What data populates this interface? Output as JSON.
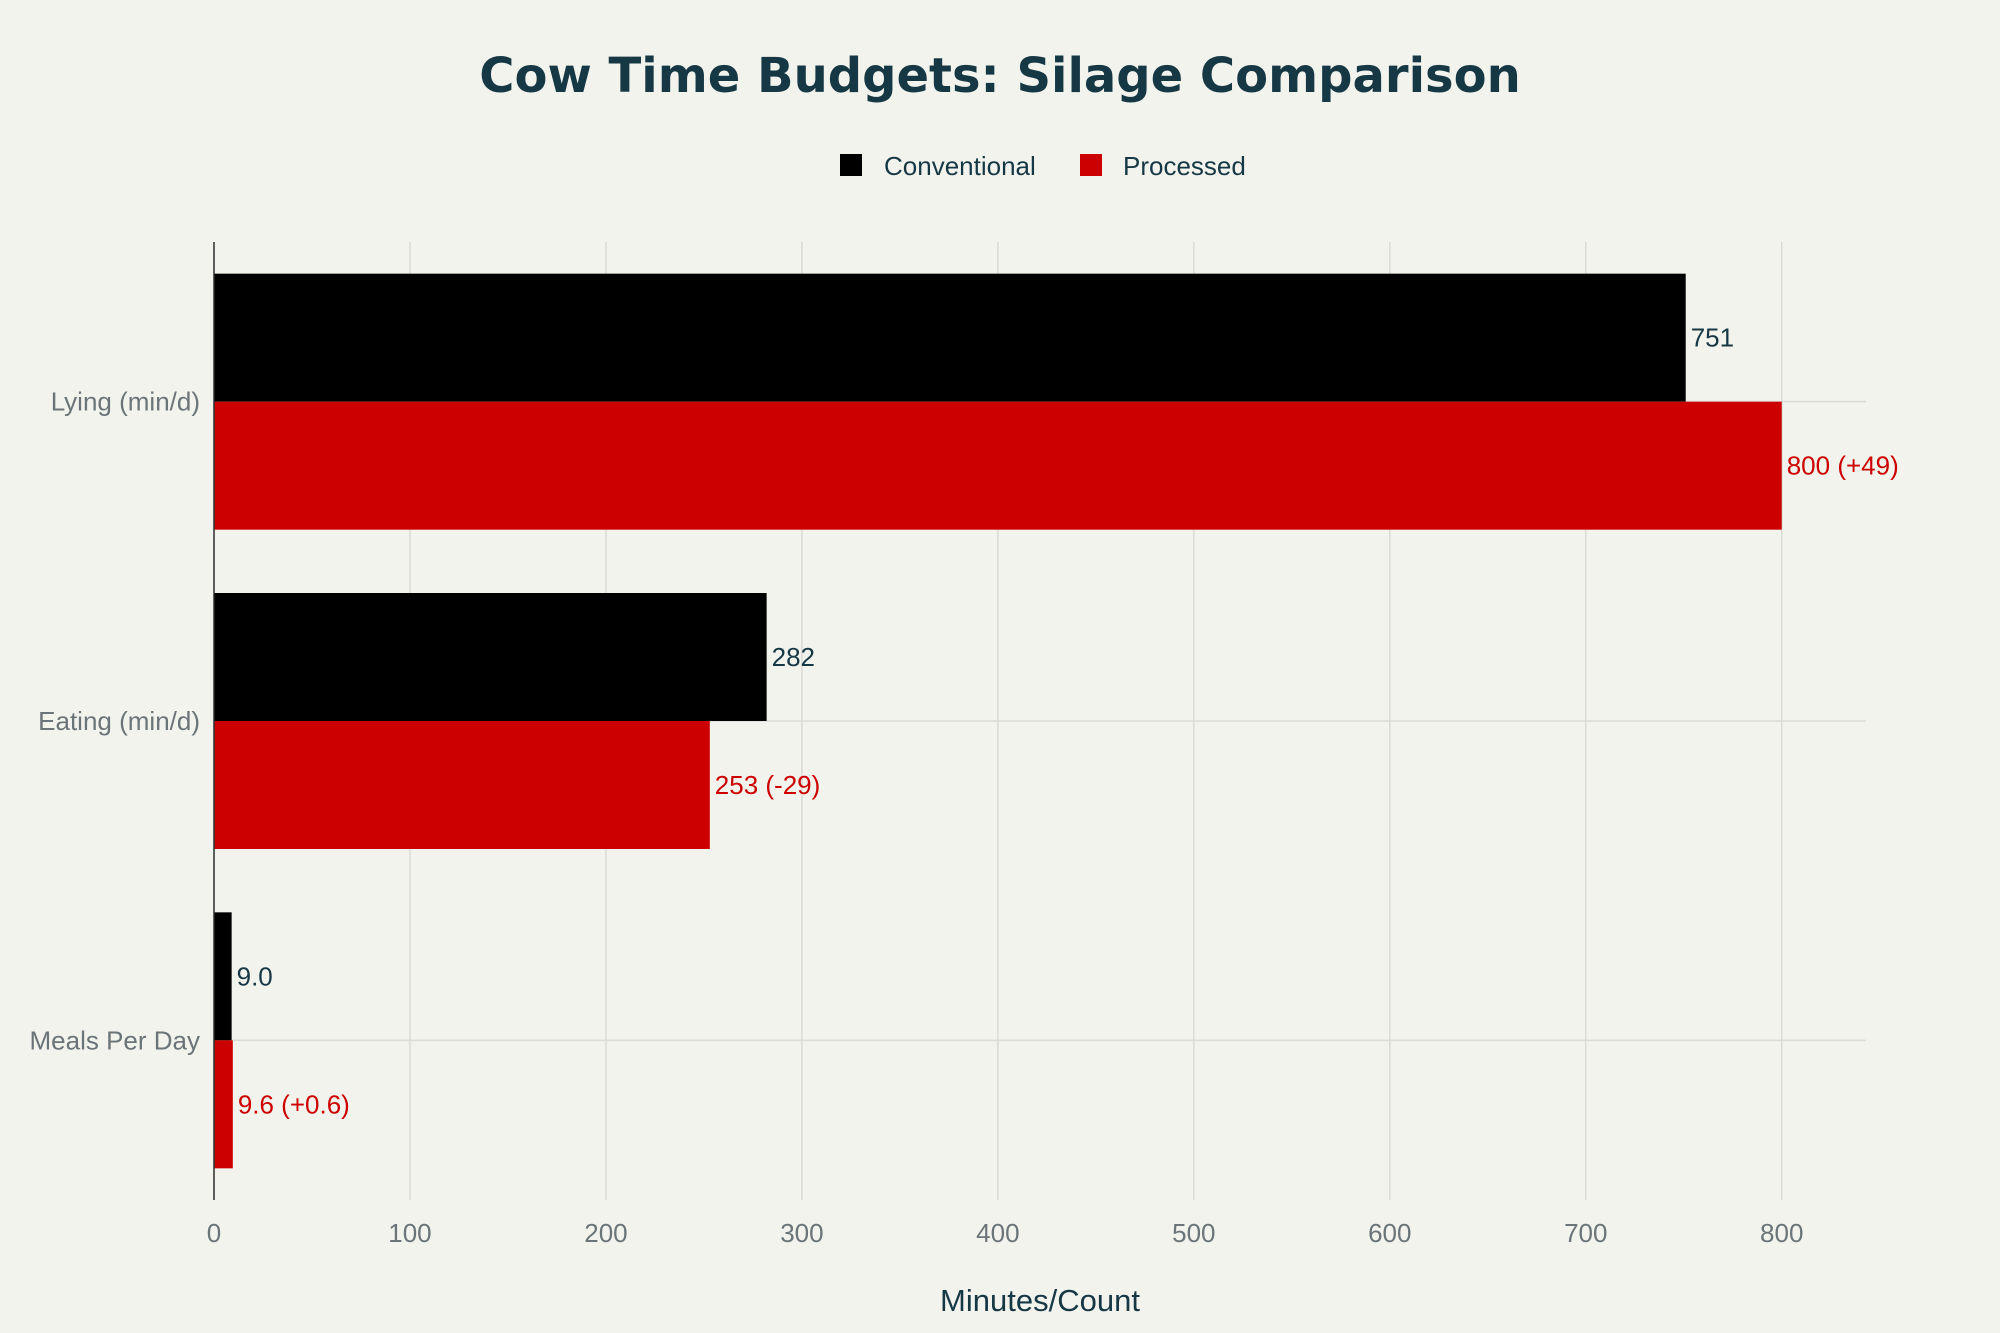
{
  "chart_data": {
    "type": "bar",
    "orientation": "horizontal",
    "title": "Cow Time Budgets: Silage Comparison",
    "xlabel": "Minutes/Count",
    "ylabel": "",
    "xlim": [
      0,
      843
    ],
    "x_ticks": [
      "0",
      "100",
      "200",
      "300",
      "400",
      "500",
      "600",
      "700",
      "800"
    ],
    "categories": [
      "Lying (min/d)",
      "Eating (min/d)",
      "Meals Per Day"
    ],
    "series": [
      {
        "name": "Conventional",
        "color": "#000000",
        "label_color": "#163845",
        "values": [
          751,
          282,
          9.0
        ],
        "labels": [
          "751",
          "282",
          "9.0"
        ]
      },
      {
        "name": "Processed",
        "color": "#cc0000",
        "label_color": "#cc0000",
        "values": [
          800,
          253,
          9.6
        ],
        "labels": [
          "800 (+49)",
          "253 (-29)",
          "9.6 (+0.6)"
        ]
      }
    ],
    "grid": true,
    "legend_position": "top-center"
  }
}
